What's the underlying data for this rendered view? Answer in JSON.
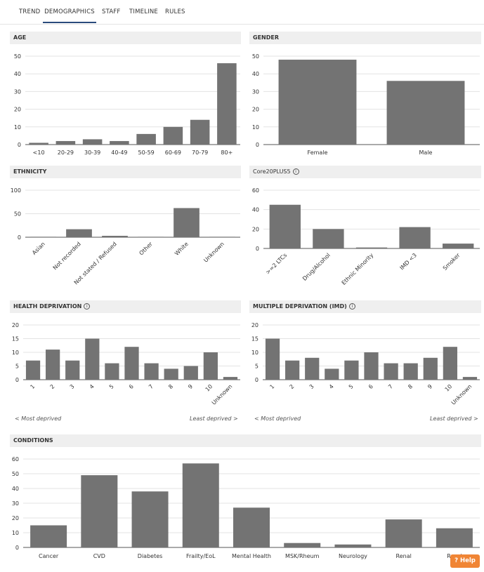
{
  "tabs": [
    {
      "label": "TREND",
      "active": false
    },
    {
      "label": "DEMOGRAPHICS",
      "active": true
    },
    {
      "label": "STAFF",
      "active": false
    },
    {
      "label": "TIMELINE",
      "active": false
    },
    {
      "label": "RULES",
      "active": false
    }
  ],
  "help_label": "? Help",
  "chart_data": [
    {
      "id": "age",
      "type": "bar",
      "title": "AGE",
      "info": false,
      "categories": [
        "<10",
        "20-29",
        "30-39",
        "40-49",
        "50-59",
        "60-69",
        "70-79",
        "80+"
      ],
      "values": [
        1,
        2,
        3,
        2,
        6,
        10,
        14,
        46
      ],
      "ylim": [
        0,
        50
      ],
      "yticks": [
        0,
        10,
        20,
        30,
        40,
        50
      ],
      "rotate_labels": false
    },
    {
      "id": "gender",
      "type": "bar",
      "title": "GENDER",
      "info": false,
      "categories": [
        "Female",
        "Male"
      ],
      "values": [
        48,
        36
      ],
      "ylim": [
        0,
        50
      ],
      "yticks": [
        0,
        10,
        20,
        30,
        40,
        50
      ],
      "rotate_labels": false
    },
    {
      "id": "ethnicity",
      "type": "bar",
      "title": "ETHNICITY",
      "info": false,
      "categories": [
        "Asian",
        "Not recorded",
        "Not stated / Refused",
        "Other",
        "White",
        "Unknown"
      ],
      "values": [
        1,
        17,
        3,
        1,
        62,
        1
      ],
      "ylim": [
        0,
        100
      ],
      "yticks": [
        0,
        50,
        100
      ],
      "rotate_labels": true
    },
    {
      "id": "core20",
      "type": "bar",
      "title": "Core20PLUS5",
      "info": true,
      "categories": [
        ">=2 LTCs",
        "Drug/Alcohol",
        "Ethnic Minority",
        "IMD <3",
        "Smoker"
      ],
      "values": [
        45,
        20,
        1,
        22,
        5
      ],
      "ylim": [
        0,
        60
      ],
      "yticks": [
        0,
        20,
        40,
        60
      ],
      "rotate_labels": true
    },
    {
      "id": "health_dep",
      "type": "bar",
      "title": "HEALTH DEPRIVATION",
      "info": true,
      "categories": [
        "1",
        "2",
        "3",
        "4",
        "5",
        "6",
        "7",
        "8",
        "9",
        "10",
        "Unknown"
      ],
      "values": [
        7,
        11,
        7,
        15,
        6,
        12,
        6,
        4,
        5,
        10,
        1
      ],
      "ylim": [
        0,
        20
      ],
      "yticks": [
        0,
        5,
        10,
        15,
        20
      ],
      "rotate_labels": true,
      "footnote_left": "< Most deprived",
      "footnote_right": "Least deprived >"
    },
    {
      "id": "imd",
      "type": "bar",
      "title": "MULTIPLE DEPRIVATION (IMD)",
      "info": true,
      "categories": [
        "1",
        "2",
        "3",
        "4",
        "5",
        "6",
        "7",
        "8",
        "9",
        "10",
        "Unknown"
      ],
      "values": [
        15,
        7,
        8,
        4,
        7,
        10,
        6,
        6,
        8,
        12,
        1
      ],
      "ylim": [
        0,
        20
      ],
      "yticks": [
        0,
        5,
        10,
        15,
        20
      ],
      "rotate_labels": true,
      "footnote_left": "< Most deprived",
      "footnote_right": "Least deprived >"
    },
    {
      "id": "conditions",
      "type": "bar",
      "title": "CONDITIONS",
      "info": false,
      "categories": [
        "Cancer",
        "CVD",
        "Diabetes",
        "Frailty/EoL",
        "Mental Health",
        "MSK/Rheum",
        "Neurology",
        "Renal",
        "Respi"
      ],
      "values": [
        15,
        49,
        38,
        57,
        27,
        3,
        2,
        19,
        13
      ],
      "ylim": [
        0,
        60
      ],
      "yticks": [
        0,
        10,
        20,
        30,
        40,
        50,
        60
      ],
      "rotate_labels": false
    }
  ]
}
